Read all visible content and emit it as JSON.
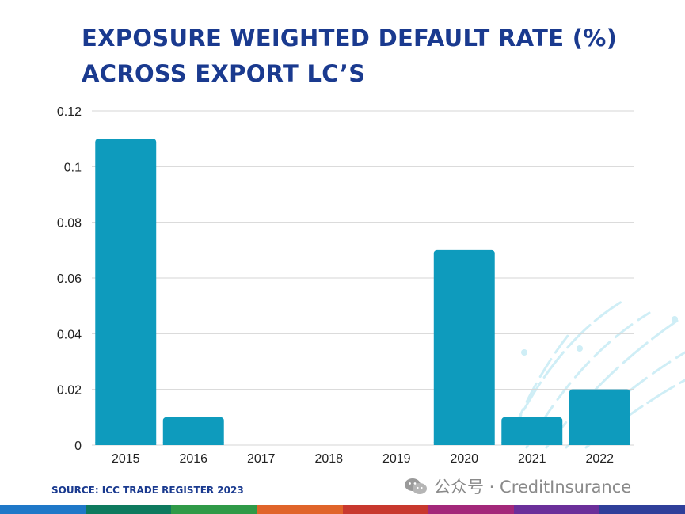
{
  "chart_data": {
    "type": "bar",
    "title_lines": [
      "EXPOSURE WEIGHTED DEFAULT RATE (%)",
      "ACROSS EXPORT LC’S"
    ],
    "categories": [
      "2015",
      "2016",
      "2017",
      "2018",
      "2019",
      "2020",
      "2021",
      "2022"
    ],
    "values": [
      0.11,
      0.01,
      0,
      0,
      0,
      0.07,
      0.01,
      0.02
    ],
    "ylim": [
      0,
      0.12
    ],
    "yticks": [
      "0",
      "0.02",
      "0.04",
      "0.06",
      "0.08",
      "0.1",
      "0.12"
    ],
    "grid": true,
    "legend": "none",
    "bar_color": "#0e9bbd",
    "title_color": "#1a3a8f"
  },
  "source_text": "SOURCE: ICC TRADE REGISTER 2023",
  "watermark": {
    "icon": "wechat-icon",
    "text": "公众号 · CreditInsurance"
  },
  "stripe_colors": [
    "#1f78c8",
    "#0e7a5e",
    "#2f9a48",
    "#e0642a",
    "#c8382e",
    "#a3287a",
    "#6b2f9a",
    "#2f3f9a"
  ]
}
